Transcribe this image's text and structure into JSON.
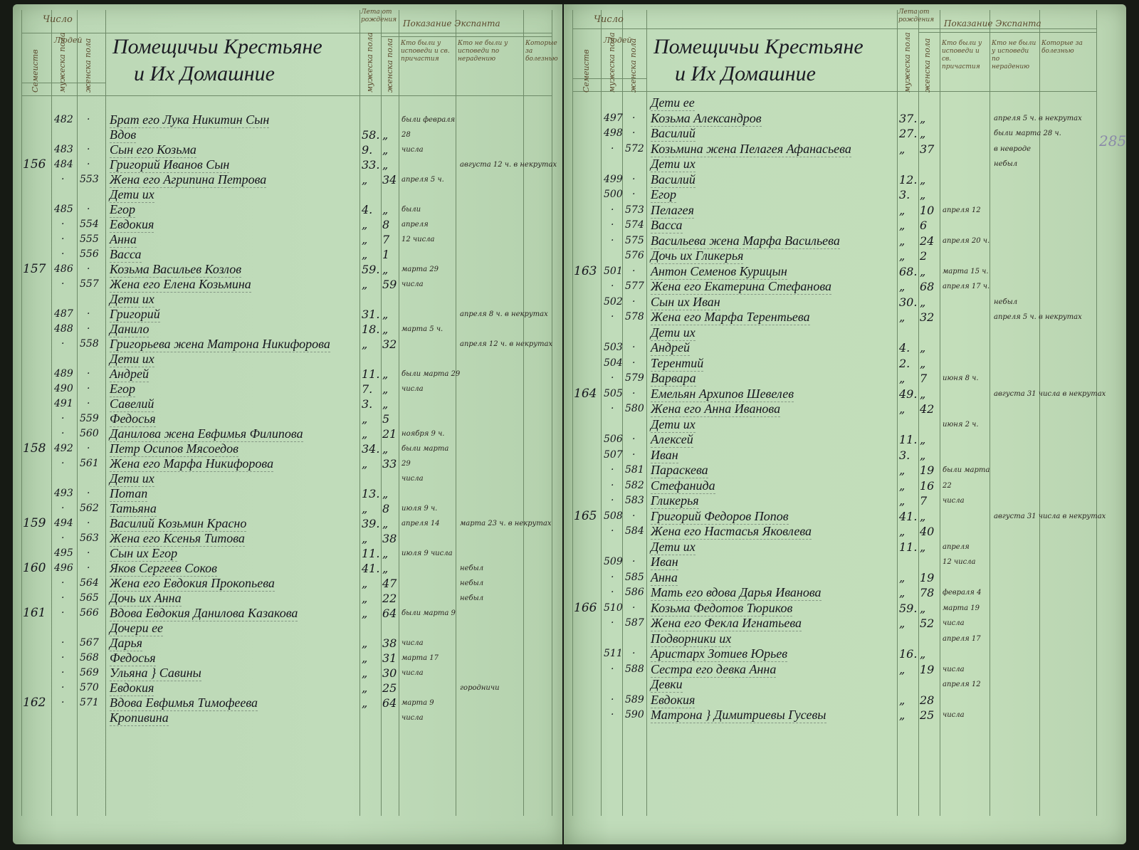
{
  "header": {
    "number_group": "Число",
    "families": "Семеиств",
    "people": "Людей",
    "males": "мужеска пола",
    "females": "женска пола",
    "title_line1": "Помещичьи Крестьяне",
    "title_line2": "и Их Домашние",
    "age_group": "Лета от рождения",
    "age_males": "мужеска пола",
    "age_females": "женска пола",
    "notes_group": "Показание Экспанта",
    "note_col1": "Кто были у исповеди и св. причастия",
    "note_col2": "Кто не были у исповеди по нерадению",
    "note_col3": "Которые за болезнью"
  },
  "page_number": "285",
  "left_rows": [
    {
      "f": "",
      "m": "482",
      "d": "·",
      "w": "",
      "name": "Брат его Лука Никитин Сын",
      "am": "",
      "aw": "",
      "n1": "были февраля",
      "n2": ""
    },
    {
      "f": "",
      "m": "",
      "d": "",
      "w": "",
      "name": "Вдов",
      "am": "58.",
      "aw": "„",
      "n1": "28",
      "n2": ""
    },
    {
      "f": "",
      "m": "483",
      "d": "·",
      "w": "",
      "name": "Сын его Козьма",
      "am": "9.",
      "aw": "„",
      "n1": "числа",
      "n2": ""
    },
    {
      "f": "156",
      "m": "484",
      "d": "·",
      "w": "",
      "name": "Григорий Иванов Сын",
      "am": "33.",
      "aw": "„",
      "n1": "",
      "n2": "августа 12 ч. в некрутах"
    },
    {
      "f": "",
      "m": "",
      "d": "·",
      "w": "553",
      "name": "Жена его Агрипина Петрова",
      "am": "„",
      "aw": "34",
      "n1": "апреля 5 ч.",
      "n2": ""
    },
    {
      "f": "",
      "m": "",
      "d": "",
      "w": "",
      "name": "Дети их",
      "am": "",
      "aw": "",
      "n1": "",
      "n2": ""
    },
    {
      "f": "",
      "m": "485",
      "d": "·",
      "w": "",
      "name": "Егор",
      "am": "4.",
      "aw": "„",
      "n1": "были",
      "n2": ""
    },
    {
      "f": "",
      "m": "",
      "d": "·",
      "w": "554",
      "name": "Евдокия",
      "am": "„",
      "aw": "8",
      "n1": "апреля",
      "n2": ""
    },
    {
      "f": "",
      "m": "",
      "d": "·",
      "w": "555",
      "name": "Анна",
      "am": "„",
      "aw": "7",
      "n1": "12 числа",
      "n2": ""
    },
    {
      "f": "",
      "m": "",
      "d": "·",
      "w": "556",
      "name": "Васса",
      "am": "„",
      "aw": "1",
      "n1": "",
      "n2": ""
    },
    {
      "f": "157",
      "m": "486",
      "d": "·",
      "w": "",
      "name": "Козьма Васильев Козлов",
      "am": "59.",
      "aw": "„",
      "n1": "марта 29",
      "n2": ""
    },
    {
      "f": "",
      "m": "",
      "d": "·",
      "w": "557",
      "name": "Жена его Елена Козьмина",
      "am": "„",
      "aw": "59",
      "n1": "числа",
      "n2": ""
    },
    {
      "f": "",
      "m": "",
      "d": "",
      "w": "",
      "name": "Дети их",
      "am": "",
      "aw": "",
      "n1": "",
      "n2": ""
    },
    {
      "f": "",
      "m": "487",
      "d": "·",
      "w": "",
      "name": "Григорий",
      "am": "31.",
      "aw": "„",
      "n1": "",
      "n2": "апреля 8 ч. в некрутах"
    },
    {
      "f": "",
      "m": "488",
      "d": "·",
      "w": "",
      "name": "Данило",
      "am": "18.",
      "aw": "„",
      "n1": "марта 5 ч.",
      "n2": ""
    },
    {
      "f": "",
      "m": "",
      "d": "·",
      "w": "558",
      "name": "Григорьева жена Матрона Никифорова",
      "am": "„",
      "aw": "32",
      "n1": "",
      "n2": "апреля 12 ч. в некрутах"
    },
    {
      "f": "",
      "m": "",
      "d": "",
      "w": "",
      "name": "Дети их",
      "am": "",
      "aw": "",
      "n1": "",
      "n2": ""
    },
    {
      "f": "",
      "m": "489",
      "d": "·",
      "w": "",
      "name": "Андрей",
      "am": "11.",
      "aw": "„",
      "n1": "были марта 29",
      "n2": ""
    },
    {
      "f": "",
      "m": "490",
      "d": "·",
      "w": "",
      "name": "Егор",
      "am": "7.",
      "aw": "„",
      "n1": "числа",
      "n2": ""
    },
    {
      "f": "",
      "m": "491",
      "d": "·",
      "w": "",
      "name": "Савелий",
      "am": "3.",
      "aw": "„",
      "n1": "",
      "n2": ""
    },
    {
      "f": "",
      "m": "",
      "d": "·",
      "w": "559",
      "name": "Федосья",
      "am": "„",
      "aw": "5",
      "n1": "",
      "n2": ""
    },
    {
      "f": "",
      "m": "",
      "d": "·",
      "w": "560",
      "name": "Данилова жена Евфимья Филипова",
      "am": "„",
      "aw": "21",
      "n1": "ноября 9 ч.",
      "n2": ""
    },
    {
      "f": "158",
      "m": "492",
      "d": "·",
      "w": "",
      "name": "Петр Осипов Мясоедов",
      "am": "34.",
      "aw": "„",
      "n1": "были марта",
      "n2": ""
    },
    {
      "f": "",
      "m": "",
      "d": "·",
      "w": "561",
      "name": "Жена его Марфа Никифорова",
      "am": "„",
      "aw": "33",
      "n1": "29",
      "n2": ""
    },
    {
      "f": "",
      "m": "",
      "d": "",
      "w": "",
      "name": "Дети их",
      "am": "",
      "aw": "",
      "n1": "числа",
      "n2": ""
    },
    {
      "f": "",
      "m": "493",
      "d": "·",
      "w": "",
      "name": "Потап",
      "am": "13.",
      "aw": "„",
      "n1": "",
      "n2": ""
    },
    {
      "f": "",
      "m": "",
      "d": "·",
      "w": "562",
      "name": "Татьяна",
      "am": "„",
      "aw": "8",
      "n1": "июля 9 ч.",
      "n2": ""
    },
    {
      "f": "159",
      "m": "494",
      "d": "·",
      "w": "",
      "name": "Василий Козьмин Красно",
      "am": "39.",
      "aw": "„",
      "n1": "апреля 14",
      "n2": "марта 23 ч. в некрутах"
    },
    {
      "f": "",
      "m": "",
      "d": "·",
      "w": "563",
      "name": "Жена его Ксенья Титова",
      "am": "„",
      "aw": "38",
      "n1": "",
      "n2": ""
    },
    {
      "f": "",
      "m": "495",
      "d": "·",
      "w": "",
      "name": "Сын их Егор",
      "am": "11.",
      "aw": "„",
      "n1": "июля 9 числа",
      "n2": ""
    },
    {
      "f": "160",
      "m": "496",
      "d": "·",
      "w": "",
      "name": "Яков Сергеев Соков",
      "am": "41.",
      "aw": "„",
      "n1": "",
      "n2": "небыл"
    },
    {
      "f": "",
      "m": "",
      "d": "·",
      "w": "564",
      "name": "Жена его Евдокия Прокопьева",
      "am": "„",
      "aw": "47",
      "n1": "",
      "n2": "небыл"
    },
    {
      "f": "",
      "m": "",
      "d": "·",
      "w": "565",
      "name": "Дочь их Анна",
      "am": "„",
      "aw": "22",
      "n1": "",
      "n2": "небыл"
    },
    {
      "f": "161",
      "m": "",
      "d": "·",
      "w": "566",
      "name": "Вдова Евдокия Данилова Казакова",
      "am": "„",
      "aw": "64",
      "n1": "были марта 9",
      "n2": ""
    },
    {
      "f": "",
      "m": "",
      "d": "",
      "w": "",
      "name": "Дочери ее",
      "am": "",
      "aw": "",
      "n1": "",
      "n2": ""
    },
    {
      "f": "",
      "m": "",
      "d": "·",
      "w": "567",
      "name": "Дарья",
      "am": "„",
      "aw": "38",
      "n1": "числа",
      "n2": ""
    },
    {
      "f": "",
      "m": "",
      "d": "·",
      "w": "568",
      "name": "Федосья",
      "am": "„",
      "aw": "31",
      "n1": "марта 17",
      "n2": ""
    },
    {
      "f": "",
      "m": "",
      "d": "·",
      "w": "569",
      "name": "Ульяна } Савины",
      "am": "„",
      "aw": "30",
      "n1": "числа",
      "n2": ""
    },
    {
      "f": "",
      "m": "",
      "d": "·",
      "w": "570",
      "name": "Евдокия",
      "am": "„",
      "aw": "25",
      "n1": "",
      "n2": "городничи"
    },
    {
      "f": "162",
      "m": "",
      "d": "·",
      "w": "571",
      "name": "Вдова Евфимья Тимофеева",
      "am": "„",
      "aw": "64",
      "n1": "марта 9",
      "n2": ""
    },
    {
      "f": "",
      "m": "",
      "d": "",
      "w": "",
      "name": "Кропивина",
      "am": "",
      "aw": "",
      "n1": "числа",
      "n2": ""
    }
  ],
  "right_rows": [
    {
      "f": "",
      "m": "",
      "d": "",
      "w": "",
      "name": "Дети ее",
      "am": "",
      "aw": "",
      "n1": "",
      "n2": ""
    },
    {
      "f": "",
      "m": "497",
      "d": "·",
      "w": "",
      "name": "Козьма Александров",
      "am": "37.",
      "aw": "„",
      "n1": "",
      "n2": "апреля 5 ч. в некрутах"
    },
    {
      "f": "",
      "m": "498",
      "d": "·",
      "w": "",
      "name": "Василий",
      "am": "27.",
      "aw": "„",
      "n1": "",
      "n2": "были марта 28 ч."
    },
    {
      "f": "",
      "m": "",
      "d": "·",
      "w": "572",
      "name": "Козьмина жена Пелагея Афанасьева",
      "am": "„",
      "aw": "37",
      "n1": "",
      "n2": "в невроде"
    },
    {
      "f": "",
      "m": "",
      "d": "",
      "w": "",
      "name": "Дети их",
      "am": "",
      "aw": "",
      "n1": "",
      "n2": "небыл"
    },
    {
      "f": "",
      "m": "499",
      "d": "·",
      "w": "",
      "name": "Василий",
      "am": "12.",
      "aw": "„",
      "n1": "",
      "n2": ""
    },
    {
      "f": "",
      "m": "500",
      "d": "·",
      "w": "",
      "name": "Егор",
      "am": "3.",
      "aw": "„",
      "n1": "",
      "n2": ""
    },
    {
      "f": "",
      "m": "",
      "d": "·",
      "w": "573",
      "name": "Пелагея",
      "am": "„",
      "aw": "10",
      "n1": "апреля 12",
      "n2": ""
    },
    {
      "f": "",
      "m": "",
      "d": "·",
      "w": "574",
      "name": "Васса",
      "am": "„",
      "aw": "6",
      "n1": "",
      "n2": ""
    },
    {
      "f": "",
      "m": "",
      "d": "·",
      "w": "575",
      "name": "Васильева жена Марфа Васильева",
      "am": "„",
      "aw": "24",
      "n1": "апреля 20 ч.",
      "n2": ""
    },
    {
      "f": "",
      "m": "",
      "d": "",
      "w": "576",
      "name": "Дочь их Гликерья",
      "am": "„",
      "aw": "2",
      "n1": "",
      "n2": ""
    },
    {
      "f": "163",
      "m": "501",
      "d": "·",
      "w": "",
      "name": "Антон Семенов Курицын",
      "am": "68.",
      "aw": "„",
      "n1": "марта 15 ч.",
      "n2": ""
    },
    {
      "f": "",
      "m": "",
      "d": "·",
      "w": "577",
      "name": "Жена его Екатерина Стефанова",
      "am": "„",
      "aw": "68",
      "n1": "апреля 17 ч.",
      "n2": ""
    },
    {
      "f": "",
      "m": "502",
      "d": "·",
      "w": "",
      "name": "Сын их Иван",
      "am": "30.",
      "aw": "„",
      "n1": "",
      "n2": "небыл"
    },
    {
      "f": "",
      "m": "",
      "d": "·",
      "w": "578",
      "name": "Жена его Марфа Терентьева",
      "am": "„",
      "aw": "32",
      "n1": "",
      "n2": "апреля 5 ч. в некрутах"
    },
    {
      "f": "",
      "m": "",
      "d": "",
      "w": "",
      "name": "Дети их",
      "am": "",
      "aw": "",
      "n1": "",
      "n2": ""
    },
    {
      "f": "",
      "m": "503",
      "d": "·",
      "w": "",
      "name": "Андрей",
      "am": "4.",
      "aw": "„",
      "n1": "",
      "n2": ""
    },
    {
      "f": "",
      "m": "504",
      "d": "·",
      "w": "",
      "name": "Терентий",
      "am": "2.",
      "aw": "„",
      "n1": "",
      "n2": ""
    },
    {
      "f": "",
      "m": "",
      "d": "·",
      "w": "579",
      "name": "Варвара",
      "am": "„",
      "aw": "7",
      "n1": "июня 8 ч.",
      "n2": ""
    },
    {
      "f": "164",
      "m": "505",
      "d": "·",
      "w": "",
      "name": "Емельян Архипов Шевелев",
      "am": "49.",
      "aw": "„",
      "n1": "",
      "n2": "августа 31 числа в некрутах"
    },
    {
      "f": "",
      "m": "",
      "d": "·",
      "w": "580",
      "name": "Жена его Анна Иванова",
      "am": "„",
      "aw": "42",
      "n1": "",
      "n2": ""
    },
    {
      "f": "",
      "m": "",
      "d": "",
      "w": "",
      "name": "Дети их",
      "am": "",
      "aw": "",
      "n1": "июня 2 ч.",
      "n2": ""
    },
    {
      "f": "",
      "m": "506",
      "d": "·",
      "w": "",
      "name": "Алексей",
      "am": "11.",
      "aw": "„",
      "n1": "",
      "n2": ""
    },
    {
      "f": "",
      "m": "507",
      "d": "·",
      "w": "",
      "name": "Иван",
      "am": "3.",
      "aw": "„",
      "n1": "",
      "n2": ""
    },
    {
      "f": "",
      "m": "",
      "d": "·",
      "w": "581",
      "name": "Параскева",
      "am": "„",
      "aw": "19",
      "n1": "были марта",
      "n2": ""
    },
    {
      "f": "",
      "m": "",
      "d": "·",
      "w": "582",
      "name": "Стефанида",
      "am": "„",
      "aw": "16",
      "n1": "22",
      "n2": ""
    },
    {
      "f": "",
      "m": "",
      "d": "·",
      "w": "583",
      "name": "Гликерья",
      "am": "„",
      "aw": "7",
      "n1": "числа",
      "n2": ""
    },
    {
      "f": "165",
      "m": "508",
      "d": "·",
      "w": "",
      "name": "Григорий Федоров Попов",
      "am": "41.",
      "aw": "„",
      "n1": "",
      "n2": "августа 31 числа в некрутах"
    },
    {
      "f": "",
      "m": "",
      "d": "·",
      "w": "584",
      "name": "Жена его Настасья Яковлева",
      "am": "„",
      "aw": "40",
      "n1": "",
      "n2": ""
    },
    {
      "f": "",
      "m": "",
      "d": "",
      "w": "",
      "name": "Дети их",
      "am": "11.",
      "aw": "„",
      "n1": "апреля",
      "n2": ""
    },
    {
      "f": "",
      "m": "509",
      "d": "·",
      "w": "",
      "name": "Иван",
      "am": "",
      "aw": "",
      "n1": "12 числа",
      "n2": ""
    },
    {
      "f": "",
      "m": "",
      "d": "·",
      "w": "585",
      "name": "Анна",
      "am": "„",
      "aw": "19",
      "n1": "",
      "n2": ""
    },
    {
      "f": "",
      "m": "",
      "d": "·",
      "w": "586",
      "name": "Мать его вдова Дарья Иванова",
      "am": "„",
      "aw": "78",
      "n1": "февраля 4",
      "n2": ""
    },
    {
      "f": "166",
      "m": "510",
      "d": "·",
      "w": "",
      "name": "Козьма Федотов Тюриков",
      "am": "59.",
      "aw": "„",
      "n1": "марта 19",
      "n2": ""
    },
    {
      "f": "",
      "m": "",
      "d": "·",
      "w": "587",
      "name": "Жена его Фекла Игнатьева",
      "am": "„",
      "aw": "52",
      "n1": "числа",
      "n2": ""
    },
    {
      "f": "",
      "m": "",
      "d": "",
      "w": "",
      "name": "Подворники их",
      "am": "",
      "aw": "",
      "n1": "апреля 17",
      "n2": ""
    },
    {
      "f": "",
      "m": "511",
      "d": "·",
      "w": "",
      "name": "Аристарх Зотиев Юрьев",
      "am": "16.",
      "aw": "„",
      "n1": "",
      "n2": ""
    },
    {
      "f": "",
      "m": "",
      "d": "·",
      "w": "588",
      "name": "Сестра его девка Анна",
      "am": "„",
      "aw": "19",
      "n1": "числа",
      "n2": ""
    },
    {
      "f": "",
      "m": "",
      "d": "",
      "w": "",
      "name": "Девки",
      "am": "",
      "aw": "",
      "n1": "апреля 12",
      "n2": ""
    },
    {
      "f": "",
      "m": "",
      "d": "·",
      "w": "589",
      "name": "Евдокия",
      "am": "„",
      "aw": "28",
      "n1": "",
      "n2": ""
    },
    {
      "f": "",
      "m": "",
      "d": "·",
      "w": "590",
      "name": "Матрона } Димитриевы Гусевы",
      "am": "„",
      "aw": "25",
      "n1": "числа",
      "n2": ""
    }
  ],
  "colors": {
    "paper": "#bfdab8",
    "ruling": "#6e8a68",
    "ink": "#15151d",
    "header_ink": "#5b4a2e"
  }
}
